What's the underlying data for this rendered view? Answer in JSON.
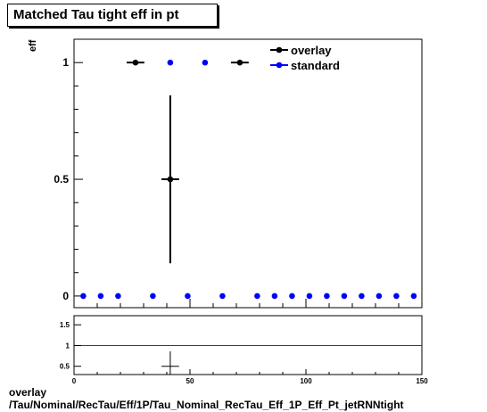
{
  "title": "Matched Tau tight eff in pt",
  "footer": {
    "line1": "overlay",
    "line2": "/Tau/Nominal/RecTau/Eff/1P/Tau_Nominal_RecTau_Eff_1P_Eff_Pt_jetRNNtight"
  },
  "colors": {
    "overlay": "#000000",
    "standard": "#0000ff",
    "ratio_line": "#cc0000"
  },
  "chart_data": [
    {
      "type": "scatter",
      "title": "Matched Tau tight eff in pt",
      "xlabel": "",
      "ylabel": "eff",
      "xlim": [
        0,
        150
      ],
      "ylim": [
        -0.05,
        1.1
      ],
      "y_ticks": [
        {
          "v": 0,
          "label": "0"
        },
        {
          "v": 0.5,
          "label": "0.5"
        },
        {
          "v": 1,
          "label": "1"
        }
      ],
      "legend": {
        "placement": "top-right",
        "entries": [
          "overlay",
          "standard"
        ]
      },
      "series": [
        {
          "name": "overlay",
          "points": [
            {
              "x": 26.5,
              "y": 1.0,
              "xerr": 3.8,
              "ylo": 1.0,
              "yhi": 1.0
            },
            {
              "x": 41.5,
              "y": 0.5,
              "xerr": 3.8,
              "ylo": 0.14,
              "yhi": 0.86
            },
            {
              "x": 71.5,
              "y": 1.0,
              "xerr": 3.8,
              "ylo": 1.0,
              "yhi": 1.0
            }
          ]
        },
        {
          "name": "standard",
          "points": [
            {
              "x": 4,
              "y": 0
            },
            {
              "x": 11.5,
              "y": 0
            },
            {
              "x": 19,
              "y": 0
            },
            {
              "x": 34,
              "y": 0
            },
            {
              "x": 41.5,
              "y": 1
            },
            {
              "x": 49,
              "y": 0
            },
            {
              "x": 56.5,
              "y": 1
            },
            {
              "x": 64,
              "y": 0
            },
            {
              "x": 79,
              "y": 0
            },
            {
              "x": 86.5,
              "y": 0
            },
            {
              "x": 94,
              "y": 0
            },
            {
              "x": 101.5,
              "y": 0
            },
            {
              "x": 109,
              "y": 0
            },
            {
              "x": 116.5,
              "y": 0
            },
            {
              "x": 124,
              "y": 0
            },
            {
              "x": 131.5,
              "y": 0
            },
            {
              "x": 139,
              "y": 0
            },
            {
              "x": 146.5,
              "y": 0
            }
          ]
        }
      ]
    },
    {
      "type": "scatter",
      "title": "",
      "xlabel": "",
      "ylabel": "",
      "xlim": [
        0,
        150
      ],
      "ylim": [
        0.3,
        1.72
      ],
      "x_ticks": [
        {
          "v": 0,
          "label": "0"
        },
        {
          "v": 50,
          "label": "50"
        },
        {
          "v": 100,
          "label": "100"
        },
        {
          "v": 150,
          "label": "150"
        }
      ],
      "y_ticks": [
        {
          "v": 0.5,
          "label": "0.5"
        },
        {
          "v": 1,
          "label": "1"
        },
        {
          "v": 1.5,
          "label": "1.5"
        }
      ],
      "reference_line": 1.0,
      "series": [
        {
          "name": "overlay",
          "points": [
            {
              "x": 41.5,
              "y": 0.5,
              "xerr": 3.8,
              "ylo": 0.14,
              "yhi": 0.86
            }
          ]
        }
      ]
    }
  ]
}
